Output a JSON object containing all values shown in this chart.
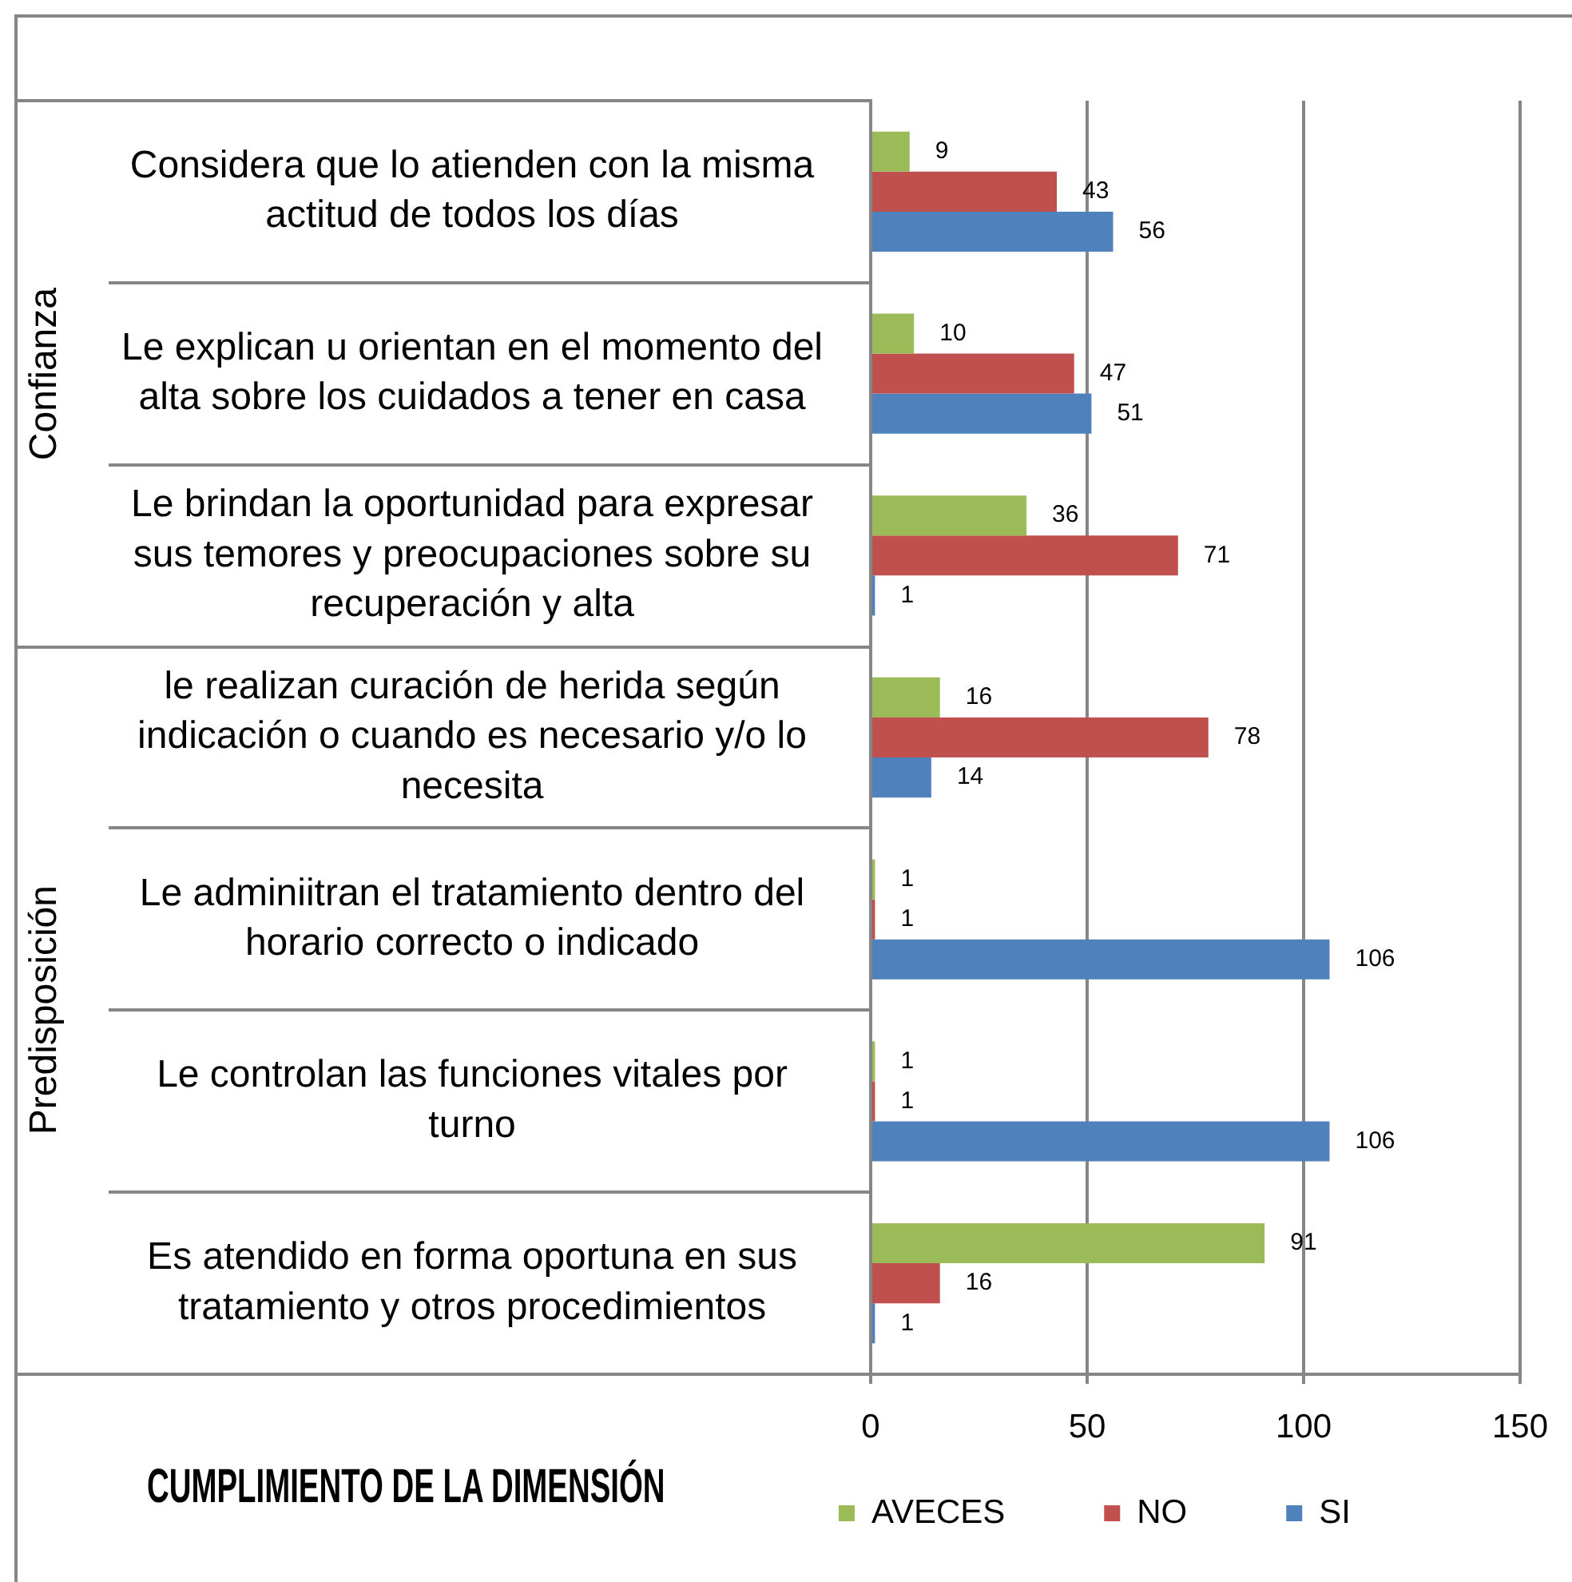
{
  "chart_data": {
    "type": "bar",
    "orientation": "horizontal",
    "title": "CUMPLIMIENTO DE LA DIMENSIÓN",
    "categories": [
      "Considera que lo atienden con la misma actitud de todos los días",
      "Le explican u orientan en el momento del alta sobre los cuidados a tener en casa",
      "Le brindan la oportunidad para expresar sus temores y preocupaciones sobre su recuperación y alta",
      "le realizan curación de herida según indicación o cuando es necesario y/o lo necesita",
      "Le adminiitran el tratamiento dentro del horario correcto o indicado",
      "Le controlan las funciones vitales por turno",
      "Es atendido en forma oportuna en sus tratamiento y otros procedimientos"
    ],
    "series": [
      {
        "name": "AVECES",
        "color": "#9bbb59",
        "values": [
          9,
          10,
          36,
          16,
          1,
          1,
          91
        ]
      },
      {
        "name": "NO",
        "color": "#c0504d",
        "values": [
          43,
          47,
          71,
          78,
          1,
          1,
          16
        ]
      },
      {
        "name": "SI",
        "color": "#4f81bd",
        "values": [
          56,
          51,
          1,
          14,
          106,
          106,
          1
        ]
      }
    ],
    "xlim": [
      0,
      150
    ],
    "xticks": [
      0,
      50,
      100,
      150
    ],
    "grid": "x",
    "legend": "bottom",
    "data_labels": true,
    "annotations": [
      "Confianza",
      "Predisposición"
    ]
  }
}
